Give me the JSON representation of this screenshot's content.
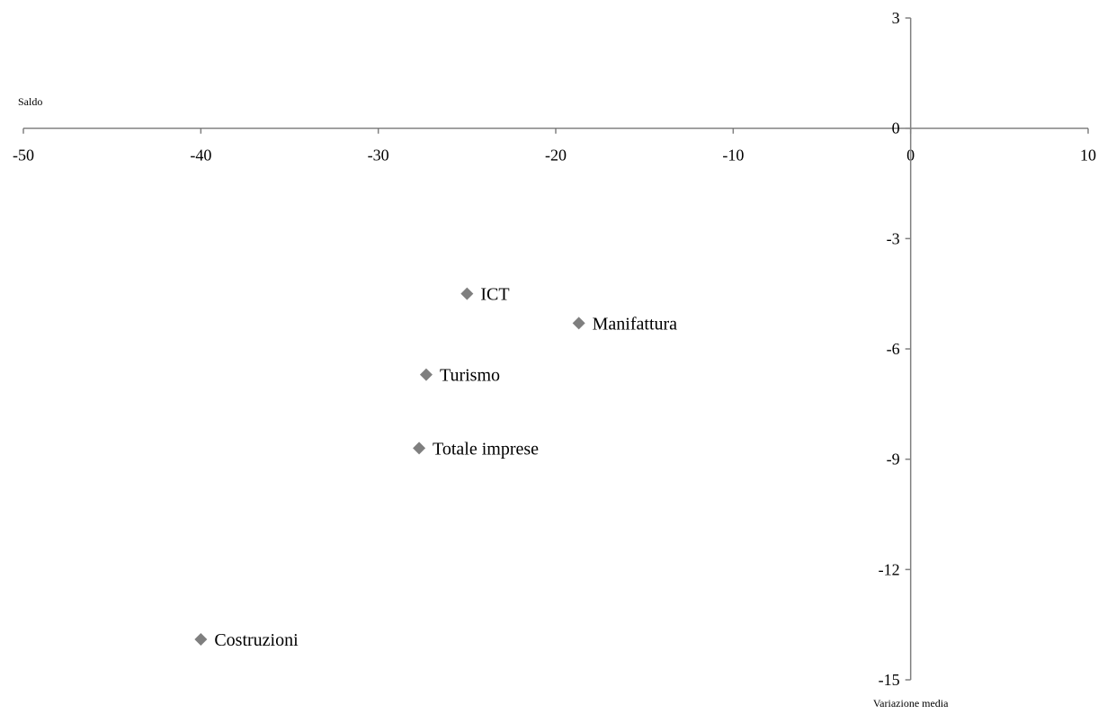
{
  "chart_data": {
    "type": "scatter",
    "xlabel": "Saldo",
    "ylabel": "Variazione media",
    "xlim": [
      -50,
      10
    ],
    "ylim": [
      -15,
      3
    ],
    "x_ticks": [
      -50,
      -40,
      -30,
      -20,
      -10,
      0,
      10
    ],
    "y_ticks": [
      3,
      0,
      -3,
      -6,
      -9,
      -12,
      -15
    ],
    "x_tick_labels": [
      "-50",
      "-40",
      "-30",
      "-20",
      "-10",
      "0",
      "10"
    ],
    "y_tick_labels": [
      "3",
      "0",
      "-3",
      "-6",
      "-9",
      "-12",
      "-15"
    ],
    "grid": false,
    "marker": "diamond",
    "marker_color": "#7f7f7f",
    "axis_color": "#808080",
    "points": [
      {
        "label": "ICT",
        "x": -25,
        "y": -4.5
      },
      {
        "label": "Manifattura",
        "x": -18.7,
        "y": -5.3
      },
      {
        "label": "Turismo",
        "x": -27.3,
        "y": -6.7
      },
      {
        "label": "Totale imprese",
        "x": -27.7,
        "y": -8.7
      },
      {
        "label": "Costruzioni",
        "x": -40,
        "y": -13.9
      }
    ]
  }
}
